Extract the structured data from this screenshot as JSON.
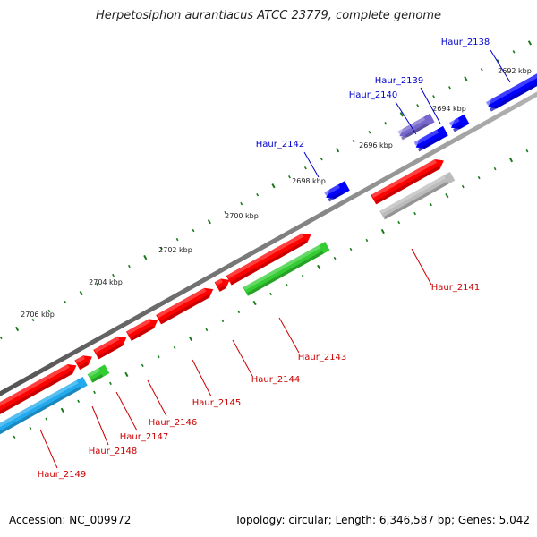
{
  "title": "Herpetosiphon aurantiacus ATCC 23779, complete genome",
  "footer": {
    "accession": "Accession: NC_009972",
    "info": "Topology: circular; Length: 6,346,587 bp; Genes: 5,042"
  },
  "colors": {
    "backbone": "#808080",
    "tick": "#1a7a1a",
    "forward_gene": "#ff0000",
    "reverse_gene": "#0000ff",
    "label_forward": "#cc0000",
    "label_reverse": "#0000cc"
  },
  "ruler": {
    "unit": "kbp",
    "ticks": [
      {
        "label": "2692 kbp"
      },
      {
        "label": "2694 kbp"
      },
      {
        "label": "2696 kbp"
      },
      {
        "label": "2698 kbp"
      },
      {
        "label": "2700 kbp"
      },
      {
        "label": "2702 kbp"
      },
      {
        "label": "2704 kbp"
      },
      {
        "label": "2706 kbp"
      }
    ]
  },
  "genes": [
    {
      "name": "Haur_2138",
      "strand": "reverse",
      "color": "#0000ff"
    },
    {
      "name": "Haur_2139",
      "strand": "reverse",
      "color": "#0000ff"
    },
    {
      "name": "Haur_2140",
      "strand": "reverse",
      "color": "#7766cc"
    },
    {
      "name": "Haur_2142",
      "strand": "reverse",
      "color": "#0000ff"
    },
    {
      "name": "Haur_2141",
      "strand": "forward",
      "color": "#ff0000",
      "feature_color": "#bbbbbb"
    },
    {
      "name": "Haur_2143",
      "strand": "forward",
      "color": "#ff0000",
      "feature_color": "#33cc33"
    },
    {
      "name": "Haur_2144",
      "strand": "forward",
      "color": "#ff0000"
    },
    {
      "name": "Haur_2145",
      "strand": "forward",
      "color": "#ff0000"
    },
    {
      "name": "Haur_2146",
      "strand": "forward",
      "color": "#ff0000"
    },
    {
      "name": "Haur_2147",
      "strand": "forward",
      "color": "#ff0000"
    },
    {
      "name": "Haur_2148",
      "strand": "forward",
      "color": "#ff0000",
      "feature_color": "#33cc33"
    },
    {
      "name": "Haur_2149",
      "strand": "forward",
      "color": "#ff0000",
      "feature_color": "#22aaee"
    }
  ]
}
